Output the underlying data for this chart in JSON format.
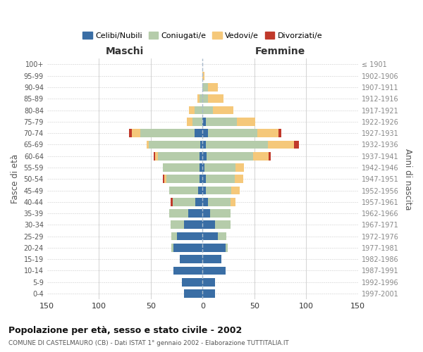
{
  "age_groups": [
    "0-4",
    "5-9",
    "10-14",
    "15-19",
    "20-24",
    "25-29",
    "30-34",
    "35-39",
    "40-44",
    "45-49",
    "50-54",
    "55-59",
    "60-64",
    "65-69",
    "70-74",
    "75-79",
    "80-84",
    "85-89",
    "90-94",
    "95-99",
    "100+"
  ],
  "birth_years": [
    "1997-2001",
    "1992-1996",
    "1987-1991",
    "1982-1986",
    "1977-1981",
    "1972-1976",
    "1967-1971",
    "1962-1966",
    "1957-1961",
    "1952-1956",
    "1947-1951",
    "1942-1946",
    "1937-1941",
    "1932-1936",
    "1927-1931",
    "1922-1926",
    "1917-1921",
    "1912-1916",
    "1907-1911",
    "1902-1906",
    "≤ 1901"
  ],
  "male_celibi": [
    18,
    20,
    28,
    22,
    28,
    25,
    18,
    14,
    7,
    4,
    3,
    3,
    3,
    2,
    8,
    0,
    0,
    0,
    0,
    0,
    0
  ],
  "male_coniugati": [
    0,
    0,
    0,
    0,
    2,
    5,
    13,
    18,
    22,
    28,
    32,
    35,
    40,
    50,
    52,
    10,
    8,
    3,
    0,
    0,
    0
  ],
  "male_vedovi": [
    0,
    0,
    0,
    0,
    0,
    0,
    0,
    0,
    0,
    0,
    2,
    0,
    3,
    2,
    8,
    5,
    5,
    2,
    0,
    0,
    0
  ],
  "male_divorziati": [
    0,
    0,
    0,
    0,
    0,
    0,
    0,
    0,
    2,
    0,
    1,
    0,
    1,
    0,
    3,
    0,
    0,
    0,
    0,
    0,
    0
  ],
  "female_celibi": [
    12,
    12,
    22,
    18,
    22,
    15,
    12,
    7,
    5,
    3,
    3,
    2,
    4,
    3,
    5,
    3,
    0,
    0,
    0,
    0,
    0
  ],
  "female_coniugati": [
    0,
    0,
    0,
    0,
    2,
    8,
    15,
    20,
    22,
    25,
    28,
    30,
    45,
    60,
    48,
    30,
    10,
    5,
    5,
    0,
    0
  ],
  "female_vedovi": [
    0,
    0,
    0,
    0,
    0,
    0,
    0,
    0,
    5,
    8,
    8,
    8,
    15,
    25,
    20,
    18,
    20,
    15,
    10,
    2,
    0
  ],
  "female_divorziati": [
    0,
    0,
    0,
    0,
    0,
    0,
    0,
    0,
    0,
    0,
    0,
    0,
    2,
    5,
    3,
    0,
    0,
    0,
    0,
    0,
    0
  ],
  "colors": {
    "celibi": "#3a6ea5",
    "coniugati": "#b5ccaa",
    "vedovi": "#f5c87a",
    "divorziati": "#c0392b"
  },
  "title": "Popolazione per età, sesso e stato civile - 2002",
  "subtitle": "COMUNE DI CASTELMAURO (CB) - Dati ISTAT 1° gennaio 2002 - Elaborazione TUTTITALIA.IT",
  "xlabel_left": "Maschi",
  "xlabel_right": "Femmine",
  "ylabel_left": "Fasce di età",
  "ylabel_right": "Anni di nascita",
  "xlim": 150,
  "legend_labels": [
    "Celibi/Nubili",
    "Coniugati/e",
    "Vedovi/e",
    "Divorziati/e"
  ],
  "bg_color": "#ffffff",
  "grid_color": "#cccccc"
}
